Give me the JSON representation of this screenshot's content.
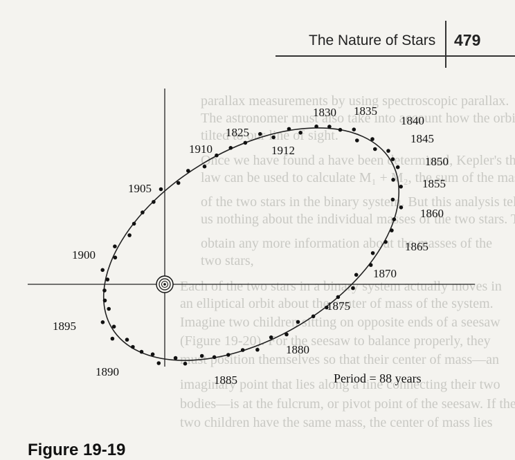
{
  "header": {
    "title": "The Nature of Stars",
    "page_number": "479"
  },
  "background_text": [
    "parallax measurements by using spectroscopic parallax.",
    "The astronomer must also take into account how the orbit is",
    "tilted to our line of sight.",
    "Once we have found a have been determined, Kepler's third",
    "law can be used to calculate M₁ + M₂, the sum of the masses",
    "of the two stars in the binary system. But this analysis tells",
    "us nothing about the individual masses of the two stars. To",
    "obtain any more information about the masses of the",
    "two stars,",
    "Each of the two stars in a binary system actually moves in",
    "an elliptical orbit about the center of mass of the system.",
    "Imagine two children sitting on opposite ends of a seesaw",
    "(Figure 19-20). For the seesaw to balance properly, they",
    "must position themselves so that their center of mass—an",
    "imaginary point that lies along a line connecting their two",
    "bodies—is at the fulcrum, or pivot point of the seesaw. If the",
    "two children have the same mass, the center of mass lies"
  ],
  "diagram": {
    "year_labels": [
      "1830",
      "1835",
      "1840",
      "1845",
      "1850",
      "1855",
      "1860",
      "1865",
      "1870",
      "1875",
      "1880",
      "1885",
      "1890",
      "1895",
      "1900",
      "1905",
      "1910",
      "1912",
      "1825"
    ],
    "period_label": "Period = 88 years",
    "central_star_icon": "sun-icon",
    "colors": {
      "ink": "#111111",
      "background": "#f4f3ef",
      "faded_text": "#c9c9c4"
    }
  },
  "caption": "Figure 19-19"
}
